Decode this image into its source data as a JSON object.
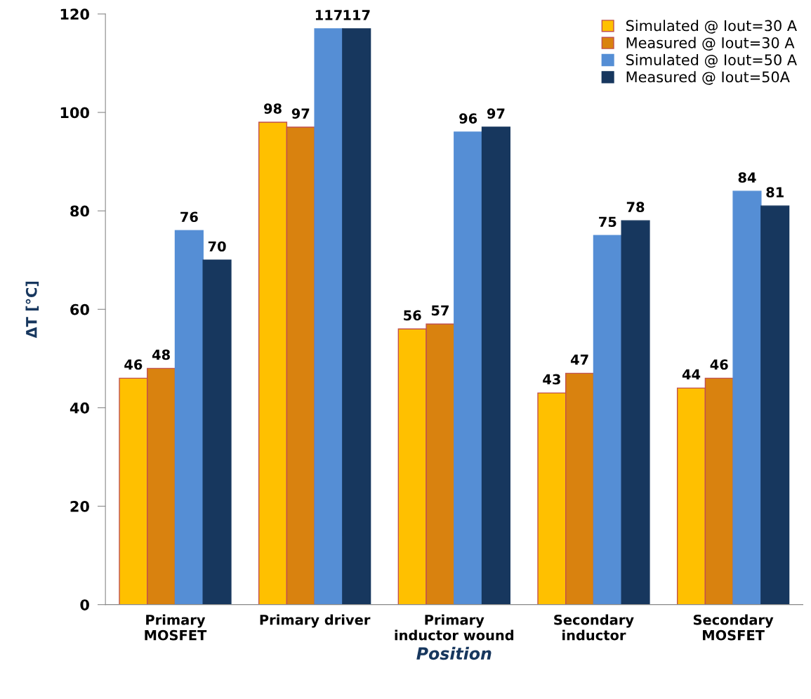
{
  "chart_data": {
    "type": "bar",
    "xlabel": "Position",
    "ylabel": "ΔT [°C]",
    "categories": [
      "Primary\nMOSFET",
      "Primary driver",
      "Primary\ninductor wound",
      "Secondary\ninductor",
      "Secondary\nMOSFET"
    ],
    "series": [
      {
        "name": "Simulated @ Iout=30 A",
        "color": "#ffc000",
        "values": [
          46,
          98,
          56,
          43,
          44
        ]
      },
      {
        "name": "Measured @ Iout=30 A",
        "color": "#d9820f",
        "values": [
          48,
          97,
          57,
          47,
          46
        ]
      },
      {
        "name": "Simulated @ Iout=50 A",
        "color": "#558ed5",
        "values": [
          76,
          117,
          96,
          75,
          84
        ]
      },
      {
        "name": "Measured @ Iout=50A",
        "color": "#17375e",
        "values": [
          70,
          117,
          97,
          78,
          81
        ]
      }
    ],
    "ylim": [
      0,
      120
    ],
    "yticks": [
      0,
      20,
      40,
      60,
      80,
      100,
      120
    ],
    "grid": false,
    "legend": "top right",
    "data_labels": true
  }
}
